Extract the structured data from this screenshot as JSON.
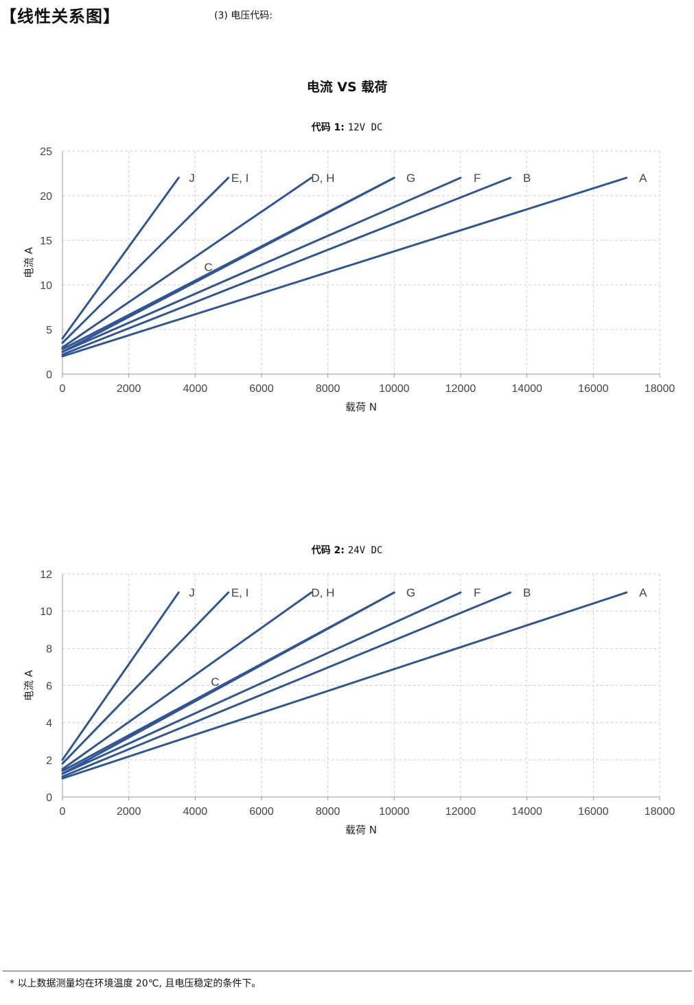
{
  "header": {
    "title": "【线性关系图】",
    "subtitle": "(3) 电压代码:"
  },
  "main_title": "电流 VS 载荷",
  "charts": [
    {
      "title_bold": "代码 1:",
      "title_rest": "12V DC"
    },
    {
      "title_bold": "代码 2:",
      "title_rest": "24V DC"
    }
  ],
  "footnote": "* 以上数据测量均在环境温度 20℃, 且电压稳定的条件下。",
  "colors": {
    "line": "#2f5597",
    "grid": "#d0d0d0",
    "axis": "#999999"
  },
  "chart_data": [
    {
      "type": "line",
      "xlabel": "载荷 N",
      "ylabel": "电流 A",
      "xlim": [
        0,
        18000
      ],
      "ylim": [
        0,
        25
      ],
      "xticks": [
        0,
        2000,
        4000,
        6000,
        8000,
        10000,
        12000,
        14000,
        16000,
        18000
      ],
      "yticks": [
        0,
        5,
        10,
        15,
        20,
        25
      ],
      "grid": true,
      "series": [
        {
          "name": "J",
          "x": [
            0,
            3500
          ],
          "y": [
            4,
            22
          ]
        },
        {
          "name": "E, I",
          "x": [
            0,
            5000
          ],
          "y": [
            3.5,
            22
          ]
        },
        {
          "name": "D, H",
          "x": [
            0,
            7500
          ],
          "y": [
            3,
            22
          ]
        },
        {
          "name": "C",
          "x": [
            0,
            10000
          ],
          "y": [
            2.8,
            22
          ]
        },
        {
          "name": "G",
          "x": [
            0,
            10000
          ],
          "y": [
            2.5,
            22
          ]
        },
        {
          "name": "F",
          "x": [
            0,
            12000
          ],
          "y": [
            2.5,
            22
          ]
        },
        {
          "name": "B",
          "x": [
            0,
            13500
          ],
          "y": [
            2.2,
            22
          ]
        },
        {
          "name": "A",
          "x": [
            0,
            17000
          ],
          "y": [
            2,
            22
          ]
        }
      ],
      "annotations": [
        {
          "text": "J",
          "x": 3900,
          "y": 22
        },
        {
          "text": "E, I",
          "x": 5350,
          "y": 22
        },
        {
          "text": "D, H",
          "x": 7850,
          "y": 22
        },
        {
          "text": "G",
          "x": 10500,
          "y": 22
        },
        {
          "text": "F",
          "x": 12500,
          "y": 22
        },
        {
          "text": "B",
          "x": 14000,
          "y": 22
        },
        {
          "text": "A",
          "x": 17500,
          "y": 22
        },
        {
          "text": "C",
          "x": 4400,
          "y": 12
        }
      ]
    },
    {
      "type": "line",
      "xlabel": "载荷 N",
      "ylabel": "电流 A",
      "xlim": [
        0,
        18000
      ],
      "ylim": [
        0,
        12
      ],
      "xticks": [
        0,
        2000,
        4000,
        6000,
        8000,
        10000,
        12000,
        14000,
        16000,
        18000
      ],
      "yticks": [
        0,
        2,
        4,
        6,
        8,
        10,
        12
      ],
      "grid": true,
      "series": [
        {
          "name": "J",
          "x": [
            0,
            3500
          ],
          "y": [
            2,
            11
          ]
        },
        {
          "name": "E, I",
          "x": [
            0,
            5000
          ],
          "y": [
            1.8,
            11
          ]
        },
        {
          "name": "D, H",
          "x": [
            0,
            7500
          ],
          "y": [
            1.5,
            11
          ]
        },
        {
          "name": "C",
          "x": [
            0,
            10000
          ],
          "y": [
            1.4,
            11
          ]
        },
        {
          "name": "G",
          "x": [
            0,
            10000
          ],
          "y": [
            1.25,
            11
          ]
        },
        {
          "name": "F",
          "x": [
            0,
            12000
          ],
          "y": [
            1.25,
            11
          ]
        },
        {
          "name": "B",
          "x": [
            0,
            13500
          ],
          "y": [
            1.1,
            11
          ]
        },
        {
          "name": "A",
          "x": [
            0,
            17000
          ],
          "y": [
            1,
            11
          ]
        }
      ],
      "annotations": [
        {
          "text": "J",
          "x": 3900,
          "y": 11
        },
        {
          "text": "E, I",
          "x": 5350,
          "y": 11
        },
        {
          "text": "D, H",
          "x": 7850,
          "y": 11
        },
        {
          "text": "G",
          "x": 10500,
          "y": 11
        },
        {
          "text": "F",
          "x": 12500,
          "y": 11
        },
        {
          "text": "B",
          "x": 14000,
          "y": 11
        },
        {
          "text": "A",
          "x": 17500,
          "y": 11
        },
        {
          "text": "C",
          "x": 4600,
          "y": 6.2
        }
      ]
    }
  ]
}
